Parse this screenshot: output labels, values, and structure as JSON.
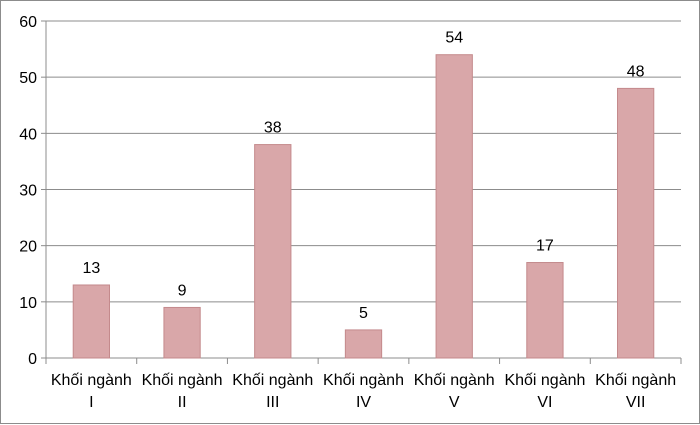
{
  "chart_data": {
    "type": "bar",
    "title": "",
    "xlabel": "",
    "ylabel": "",
    "ylim": [
      0,
      60
    ],
    "yticks": [
      0,
      10,
      20,
      30,
      40,
      50,
      60
    ],
    "grid": true,
    "legend": "none",
    "bar_color": "#d9a7a9",
    "bar_edge_color": "#c48a8c",
    "categories": [
      {
        "line1": "Khối ngành",
        "line2": "I"
      },
      {
        "line1": "Khối ngành",
        "line2": "II"
      },
      {
        "line1": "Khối ngành",
        "line2": "III"
      },
      {
        "line1": "Khối ngành",
        "line2": "IV"
      },
      {
        "line1": "Khối ngành",
        "line2": "V"
      },
      {
        "line1": "Khối ngành",
        "line2": "VI"
      },
      {
        "line1": "Khối ngành",
        "line2": "VII"
      }
    ],
    "values": [
      13,
      9,
      38,
      5,
      54,
      17,
      48
    ],
    "data_labels": [
      "13",
      "9",
      "38",
      "5",
      "54",
      "17",
      "48"
    ]
  }
}
